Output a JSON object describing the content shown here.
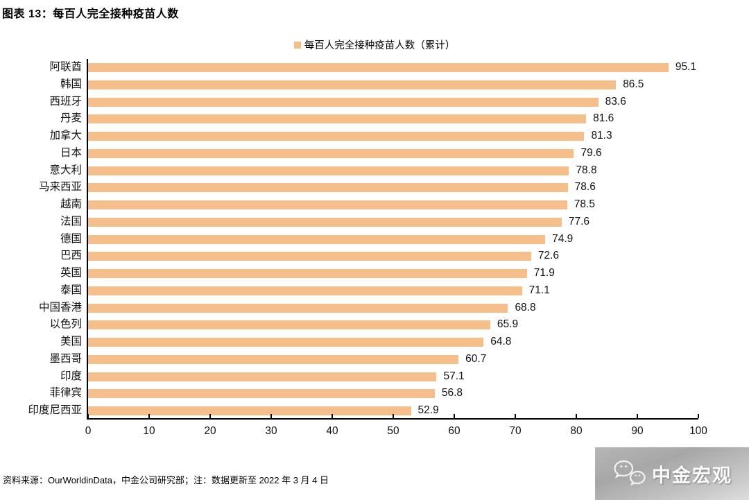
{
  "title": "图表 13：每百人完全接种疫苗人数",
  "legend": {
    "label": "每百人完全接种疫苗人数（累计）",
    "marker_color": "#F5BF8B"
  },
  "chart_data": {
    "type": "bar",
    "orientation": "horizontal",
    "title": "每百人完全接种疫苗人数",
    "series_name": "每百人完全接种疫苗人数（累计）",
    "categories": [
      "阿联酋",
      "韩国",
      "西班牙",
      "丹麦",
      "加拿大",
      "日本",
      "意大利",
      "马来西亚",
      "越南",
      "法国",
      "德国",
      "巴西",
      "英国",
      "泰国",
      "中国香港",
      "以色列",
      "美国",
      "墨西哥",
      "印度",
      "菲律宾",
      "印度尼西亚"
    ],
    "values": [
      95.1,
      86.5,
      83.6,
      81.6,
      81.3,
      79.6,
      78.8,
      78.6,
      78.5,
      77.6,
      74.9,
      72.6,
      71.9,
      71.1,
      68.8,
      65.9,
      64.8,
      60.7,
      57.1,
      56.8,
      52.9
    ],
    "xlim": [
      0,
      100
    ],
    "x_ticks": [
      0,
      10,
      20,
      30,
      40,
      50,
      60,
      70,
      80,
      90,
      100
    ],
    "bar_color": "#F5BF8B",
    "value_labels": true,
    "grid": false,
    "legend_position": "top"
  },
  "footer": {
    "source_note": "资料来源：OurWorldinData，中金公司研究部；注：数据更新至 2022 年 3 月 4 日"
  },
  "watermark": {
    "label": "中金宏观",
    "icon": "wechat-icon"
  }
}
